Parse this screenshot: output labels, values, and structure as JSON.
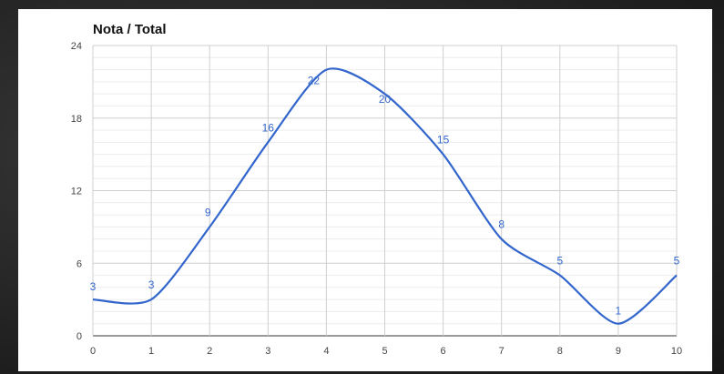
{
  "chart_data": {
    "type": "line",
    "title": "Nota / Total",
    "xlabel": "",
    "ylabel": "",
    "x": [
      0,
      1,
      2,
      3,
      4,
      5,
      6,
      7,
      8,
      9,
      10
    ],
    "series": [
      {
        "values": [
          3,
          3,
          9,
          16,
          22,
          20,
          15,
          8,
          5,
          1,
          5
        ],
        "color": "#3366cc"
      }
    ],
    "xlim": [
      0,
      10
    ],
    "ylim": [
      0,
      24
    ],
    "x_ticks": [
      "0",
      "1",
      "2",
      "3",
      "4",
      "5",
      "6",
      "7",
      "8",
      "9",
      "10"
    ],
    "y_ticks": [
      "0",
      "6",
      "12",
      "18",
      "24"
    ],
    "grid": true,
    "smooth": true,
    "data_labels": true
  }
}
